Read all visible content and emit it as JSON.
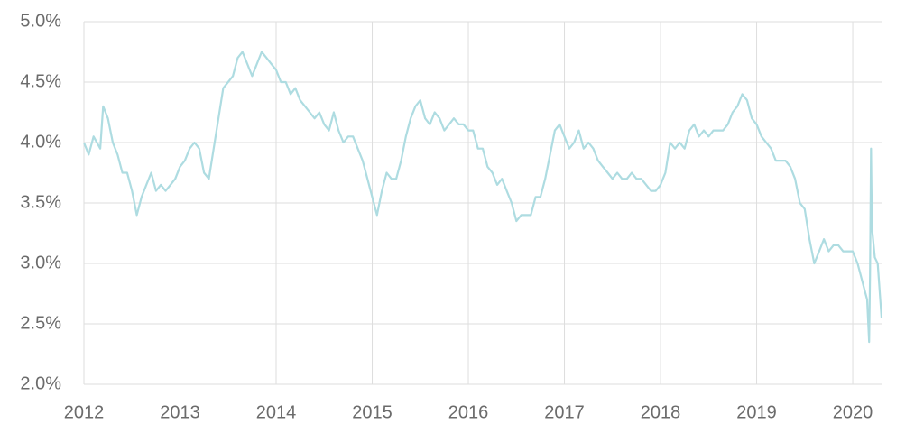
{
  "chart_data": {
    "type": "line",
    "x": [
      2012.0,
      2012.05,
      2012.1,
      2012.17,
      2012.2,
      2012.25,
      2012.3,
      2012.35,
      2012.4,
      2012.45,
      2012.5,
      2012.55,
      2012.6,
      2012.65,
      2012.7,
      2012.75,
      2012.8,
      2012.85,
      2012.9,
      2012.95,
      2013.0,
      2013.05,
      2013.1,
      2013.15,
      2013.2,
      2013.25,
      2013.3,
      2013.35,
      2013.4,
      2013.45,
      2013.5,
      2013.55,
      2013.6,
      2013.65,
      2013.7,
      2013.75,
      2013.8,
      2013.85,
      2013.9,
      2013.95,
      2014.0,
      2014.05,
      2014.1,
      2014.15,
      2014.2,
      2014.25,
      2014.3,
      2014.35,
      2014.4,
      2014.45,
      2014.5,
      2014.55,
      2014.6,
      2014.65,
      2014.7,
      2014.75,
      2014.8,
      2014.85,
      2014.9,
      2014.95,
      2015.0,
      2015.05,
      2015.1,
      2015.15,
      2015.2,
      2015.25,
      2015.3,
      2015.35,
      2015.4,
      2015.45,
      2015.5,
      2015.55,
      2015.6,
      2015.65,
      2015.7,
      2015.75,
      2015.8,
      2015.85,
      2015.9,
      2015.95,
      2016.0,
      2016.05,
      2016.1,
      2016.15,
      2016.2,
      2016.25,
      2016.3,
      2016.35,
      2016.4,
      2016.45,
      2016.5,
      2016.55,
      2016.6,
      2016.65,
      2016.7,
      2016.75,
      2016.8,
      2016.85,
      2016.9,
      2016.95,
      2017.0,
      2017.05,
      2017.1,
      2017.15,
      2017.2,
      2017.25,
      2017.3,
      2017.35,
      2017.4,
      2017.45,
      2017.5,
      2017.55,
      2017.6,
      2017.65,
      2017.7,
      2017.75,
      2017.8,
      2017.85,
      2017.9,
      2017.95,
      2018.0,
      2018.05,
      2018.1,
      2018.15,
      2018.2,
      2018.25,
      2018.3,
      2018.35,
      2018.4,
      2018.45,
      2018.5,
      2018.55,
      2018.6,
      2018.65,
      2018.7,
      2018.75,
      2018.8,
      2018.85,
      2018.9,
      2018.95,
      2019.0,
      2019.05,
      2019.1,
      2019.15,
      2019.2,
      2019.25,
      2019.3,
      2019.35,
      2019.4,
      2019.45,
      2019.5,
      2019.55,
      2019.6,
      2019.65,
      2019.7,
      2019.75,
      2019.8,
      2019.85,
      2019.9,
      2019.95,
      2020.0,
      2020.05,
      2020.1,
      2020.15,
      2020.17,
      2020.18,
      2020.19,
      2020.2,
      2020.23,
      2020.26,
      2020.3
    ],
    "series": [
      {
        "color": "#aedce1",
        "values": [
          4.0,
          3.9,
          4.05,
          3.95,
          4.3,
          4.2,
          4.0,
          3.9,
          3.75,
          3.75,
          3.6,
          3.4,
          3.55,
          3.65,
          3.75,
          3.6,
          3.65,
          3.6,
          3.65,
          3.7,
          3.8,
          3.85,
          3.95,
          4.0,
          3.95,
          3.75,
          3.7,
          3.95,
          4.2,
          4.45,
          4.5,
          4.55,
          4.7,
          4.75,
          4.65,
          4.55,
          4.65,
          4.75,
          4.7,
          4.65,
          4.6,
          4.5,
          4.5,
          4.4,
          4.45,
          4.35,
          4.3,
          4.25,
          4.2,
          4.25,
          4.15,
          4.1,
          4.25,
          4.1,
          4.0,
          4.05,
          4.05,
          3.95,
          3.85,
          3.7,
          3.55,
          3.4,
          3.6,
          3.75,
          3.7,
          3.7,
          3.85,
          4.05,
          4.2,
          4.3,
          4.35,
          4.2,
          4.15,
          4.25,
          4.2,
          4.1,
          4.15,
          4.2,
          4.15,
          4.15,
          4.1,
          4.1,
          3.95,
          3.95,
          3.8,
          3.75,
          3.65,
          3.7,
          3.6,
          3.5,
          3.35,
          3.4,
          3.4,
          3.4,
          3.55,
          3.55,
          3.7,
          3.9,
          4.1,
          4.15,
          4.05,
          3.95,
          4.0,
          4.1,
          3.95,
          4.0,
          3.95,
          3.85,
          3.8,
          3.75,
          3.7,
          3.75,
          3.7,
          3.7,
          3.75,
          3.7,
          3.7,
          3.65,
          3.6,
          3.6,
          3.65,
          3.75,
          4.0,
          3.95,
          4.0,
          3.95,
          4.1,
          4.15,
          4.05,
          4.1,
          4.05,
          4.1,
          4.1,
          4.1,
          4.15,
          4.25,
          4.3,
          4.4,
          4.35,
          4.2,
          4.15,
          4.05,
          4.0,
          3.95,
          3.85,
          3.85,
          3.85,
          3.8,
          3.7,
          3.5,
          3.45,
          3.2,
          3.0,
          3.1,
          3.2,
          3.1,
          3.15,
          3.15,
          3.1,
          3.1,
          3.1,
          3.0,
          2.85,
          2.7,
          2.35,
          2.9,
          3.95,
          3.3,
          3.05,
          3.0,
          2.55
        ]
      }
    ],
    "xlim": [
      2012,
      2020.3
    ],
    "xticks": [
      2012,
      2013,
      2014,
      2015,
      2016,
      2017,
      2018,
      2019,
      2020
    ],
    "ylim": [
      2,
      5
    ],
    "yticks": [
      {
        "value": 2,
        "label": "2.0%"
      },
      {
        "value": 2.5,
        "label": "2.5%"
      },
      {
        "value": 3,
        "label": "3.0%"
      },
      {
        "value": 3.5,
        "label": "3.5%"
      },
      {
        "value": 4,
        "label": "4.0%"
      },
      {
        "value": 4.5,
        "label": "4.5%"
      },
      {
        "value": 5,
        "label": "5.0%"
      }
    ],
    "grid": true
  }
}
